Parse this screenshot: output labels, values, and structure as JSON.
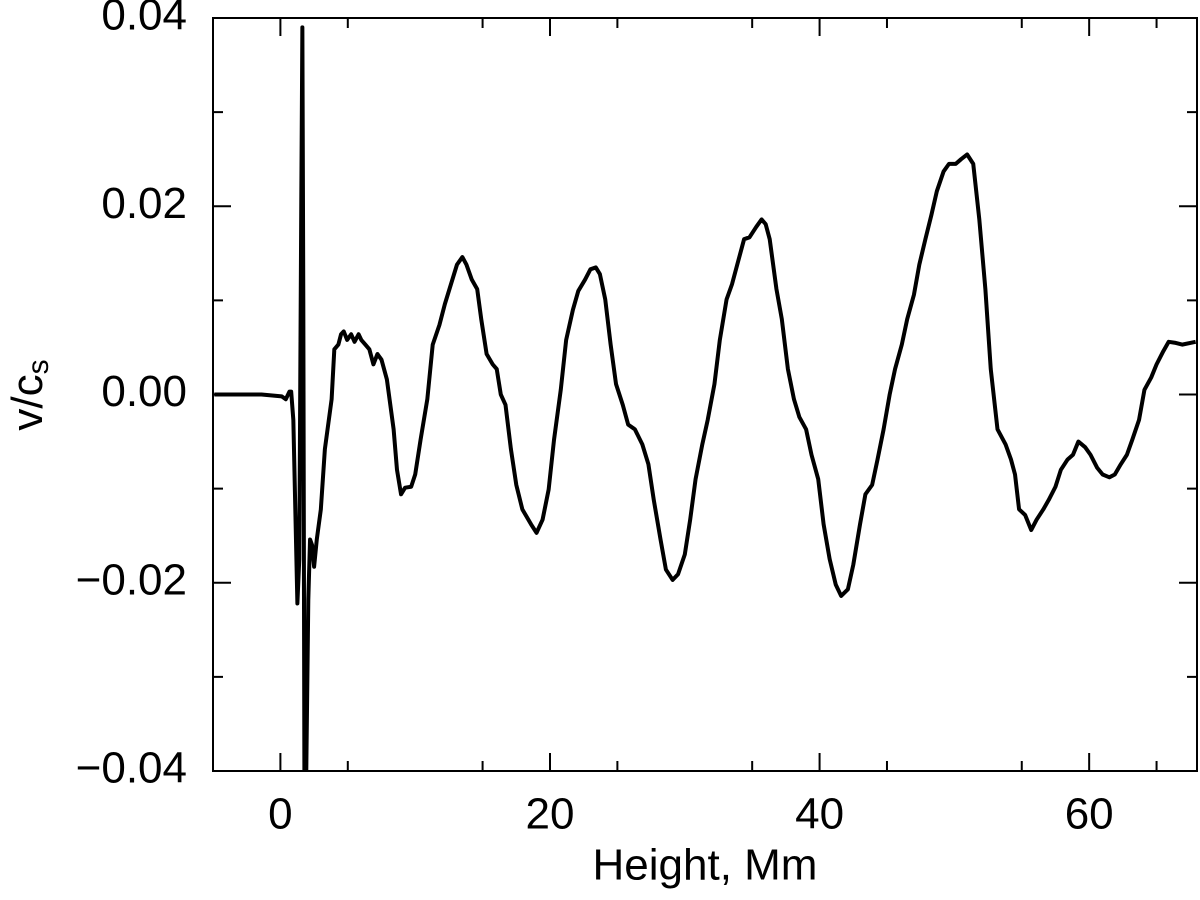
{
  "chart_data": {
    "type": "line",
    "x_label": "Height, Mm",
    "y_label": "v/c",
    "y_label_subscript": "s",
    "xlim": [
      -5,
      68
    ],
    "ylim": [
      -0.04,
      0.04
    ],
    "xticks": [
      0,
      20,
      40,
      60
    ],
    "xminorticks": [
      5,
      15,
      25,
      35,
      45,
      55,
      65
    ],
    "yticks": [
      {
        "value": -0.04,
        "label": "−0.04"
      },
      {
        "value": -0.02,
        "label": "−0.02"
      },
      {
        "value": 0,
        "label": "0.00"
      },
      {
        "value": 0.02,
        "label": "0.02"
      },
      0.04
    ],
    "yminorticks": [
      -0.03,
      -0.01,
      0.01,
      0.03
    ],
    "color": "#000000",
    "x": [
      -4.9,
      -1.4,
      0.1,
      0.4,
      0.67,
      0.8,
      0.96,
      1.26,
      1.4,
      1.55,
      1.63,
      1.7,
      1.78,
      1.92,
      2.07,
      2.2,
      2.35,
      2.5,
      2.7,
      3.0,
      3.3,
      3.8,
      4.0,
      4.3,
      4.5,
      4.7,
      4.95,
      5.25,
      5.5,
      5.8,
      6.0,
      6.3,
      6.6,
      6.9,
      7.2,
      7.5,
      7.9,
      8.4,
      8.65,
      8.95,
      9.25,
      9.7,
      10.0,
      10.4,
      10.9,
      11.3,
      11.8,
      12.2,
      12.65,
      13.1,
      13.5,
      13.8,
      14.2,
      14.6,
      14.9,
      15.3,
      15.75,
      16.05,
      16.35,
      16.7,
      17.1,
      17.5,
      17.95,
      18.6,
      19.0,
      19.45,
      19.9,
      20.3,
      20.8,
      21.2,
      21.7,
      22.1,
      22.6,
      23.0,
      23.4,
      23.7,
      24.1,
      24.5,
      24.9,
      25.4,
      25.8,
      26.3,
      26.85,
      27.3,
      27.7,
      28.2,
      28.6,
      29.1,
      29.5,
      30.0,
      30.4,
      30.8,
      31.3,
      31.7,
      32.2,
      32.6,
      33.1,
      33.5,
      33.95,
      34.4,
      34.8,
      35.3,
      35.7,
      36.0,
      36.3,
      36.8,
      37.2,
      37.65,
      38.1,
      38.5,
      39.0,
      39.4,
      39.9,
      40.3,
      40.75,
      41.2,
      41.6,
      42.1,
      42.5,
      43.0,
      43.4,
      43.9,
      44.3,
      44.75,
      45.2,
      45.6,
      46.1,
      46.5,
      47.0,
      47.4,
      47.85,
      48.3,
      48.7,
      49.2,
      49.6,
      50.1,
      50.5,
      50.95,
      51.4,
      51.85,
      52.3,
      52.7,
      53.2,
      53.8,
      54.2,
      54.5,
      54.8,
      55.25,
      55.7,
      56.1,
      56.6,
      57.0,
      57.5,
      57.9,
      58.4,
      58.8,
      59.2,
      59.7,
      60.1,
      60.6,
      61.0,
      61.5,
      61.9,
      62.35,
      62.8,
      63.2,
      63.7,
      64.1,
      64.6,
      65.0,
      65.5,
      65.9,
      66.35,
      66.9,
      67.9
    ],
    "values": [
      0,
      0,
      -0.0002,
      -0.0005,
      0.0003,
      0.0003,
      -0.0027,
      -0.0222,
      -0.0175,
      0.0207,
      0.039,
      0.01,
      -0.04,
      -0.04,
      -0.0218,
      -0.0154,
      -0.016,
      -0.0183,
      -0.0154,
      -0.0122,
      -0.0058,
      -0.0005,
      0.0048,
      0.0053,
      0.0064,
      0.0067,
      0.0058,
      0.0064,
      0.0056,
      0.0064,
      0.0058,
      0.0053,
      0.0048,
      0.0032,
      0.0043,
      0.0037,
      0.0016,
      -0.0037,
      -0.008,
      -0.0106,
      -0.0099,
      -0.0098,
      -0.0085,
      -0.0048,
      -0.0005,
      0.0053,
      0.0074,
      0.0096,
      0.0117,
      0.0138,
      0.0146,
      0.0138,
      0.0122,
      0.0112,
      0.008,
      0.0043,
      0.0032,
      0.0027,
      0,
      -0.0011,
      -0.0058,
      -0.0096,
      -0.0122,
      -0.0138,
      -0.0147,
      -0.0133,
      -0.0101,
      -0.0048,
      0.0005,
      0.0058,
      0.009,
      0.011,
      0.0122,
      0.0133,
      0.0135,
      0.0128,
      0.0101,
      0.0053,
      0.0011,
      -0.0011,
      -0.0032,
      -0.0037,
      -0.0053,
      -0.0074,
      -0.0112,
      -0.0154,
      -0.0186,
      -0.0197,
      -0.0191,
      -0.017,
      -0.0133,
      -0.009,
      -0.0053,
      -0.0027,
      0.0011,
      0.0058,
      0.0101,
      0.0117,
      0.0141,
      0.0165,
      0.0167,
      0.0178,
      0.0186,
      0.0181,
      0.0165,
      0.0112,
      0.008,
      0.0027,
      -0.0005,
      -0.0024,
      -0.0037,
      -0.0064,
      -0.009,
      -0.0138,
      -0.0175,
      -0.0202,
      -0.0214,
      -0.0207,
      -0.0181,
      -0.0138,
      -0.0106,
      -0.0096,
      -0.0069,
      -0.0037,
      0,
      0.0027,
      0.0053,
      0.008,
      0.0106,
      0.0138,
      0.0165,
      0.0191,
      0.0216,
      0.0237,
      0.0245,
      0.0245,
      0.025,
      0.0255,
      0.0245,
      0.0186,
      0.0112,
      0.0027,
      -0.0037,
      -0.0053,
      -0.0069,
      -0.0085,
      -0.0122,
      -0.0128,
      -0.0144,
      -0.0133,
      -0.0122,
      -0.0112,
      -0.0098,
      -0.008,
      -0.0069,
      -0.0064,
      -0.005,
      -0.0056,
      -0.0064,
      -0.0078,
      -0.0085,
      -0.0088,
      -0.0085,
      -0.0074,
      -0.0064,
      -0.0048,
      -0.0027,
      0.0005,
      0.0018,
      0.0032,
      0.0046,
      0.0056,
      0.0055,
      0.0053,
      0.0056
    ]
  }
}
